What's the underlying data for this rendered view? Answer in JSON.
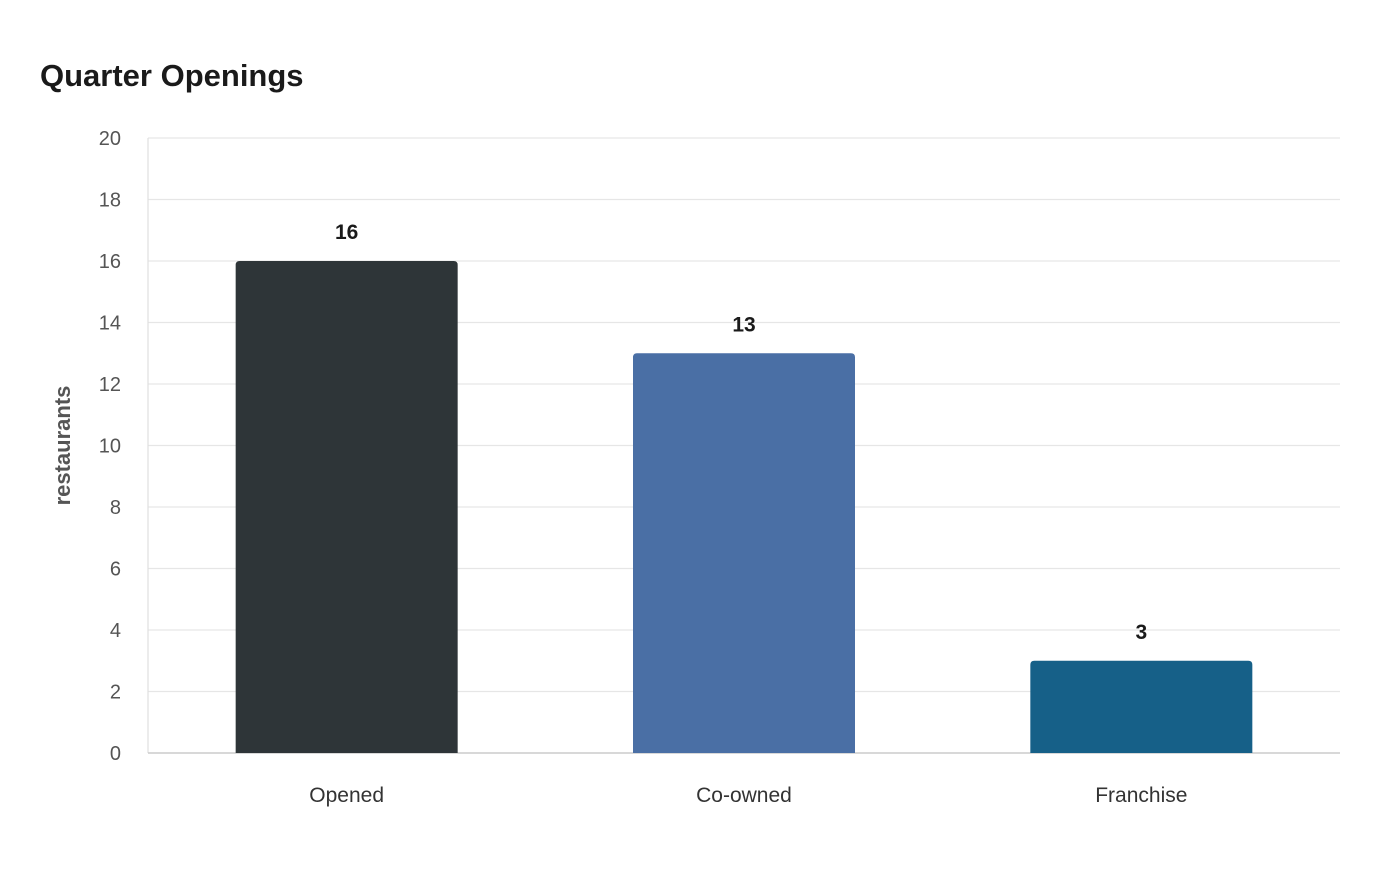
{
  "chart_data": {
    "type": "bar",
    "title": "Quarter Openings",
    "xlabel": "",
    "ylabel": "restaurants",
    "categories": [
      "Opened",
      "Co-owned",
      "Franchise"
    ],
    "values": [
      16,
      13,
      3
    ],
    "bar_colors": [
      "#2e3538",
      "#4a6fa5",
      "#166088"
    ],
    "ylim": [
      0,
      20
    ],
    "yticks": [
      0,
      2,
      4,
      6,
      8,
      10,
      12,
      14,
      16,
      18,
      20
    ],
    "grid": true,
    "legend": "none",
    "data_labels": true
  }
}
